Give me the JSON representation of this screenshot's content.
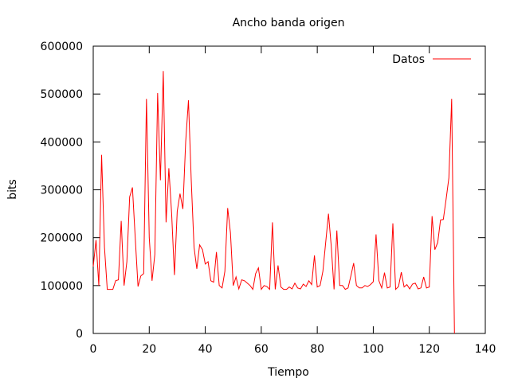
{
  "chart_data": {
    "type": "line",
    "title": "Ancho banda origen",
    "xlabel": "Tiempo",
    "ylabel": "bits",
    "xlim": [
      0,
      140
    ],
    "ylim": [
      0,
      600000
    ],
    "xticks": [
      0,
      20,
      40,
      60,
      80,
      100,
      120,
      140
    ],
    "yticks": [
      0,
      100000,
      200000,
      300000,
      400000,
      500000,
      600000
    ],
    "grid": false,
    "legend": "top-right",
    "color": "#ff0000",
    "series": [
      {
        "name": "Datos",
        "x": [
          0,
          1,
          2,
          3,
          4,
          5,
          6,
          7,
          8,
          9,
          10,
          11,
          12,
          13,
          14,
          15,
          16,
          17,
          18,
          19,
          20,
          21,
          22,
          23,
          24,
          25,
          26,
          27,
          28,
          29,
          30,
          31,
          32,
          33,
          34,
          35,
          36,
          37,
          38,
          39,
          40,
          41,
          42,
          43,
          44,
          45,
          46,
          47,
          48,
          49,
          50,
          51,
          52,
          53,
          54,
          55,
          56,
          57,
          58,
          59,
          60,
          61,
          62,
          63,
          64,
          65,
          66,
          67,
          68,
          69,
          70,
          71,
          72,
          73,
          74,
          75,
          76,
          77,
          78,
          79,
          80,
          81,
          82,
          83,
          84,
          85,
          86,
          87,
          88,
          89,
          90,
          91,
          92,
          93,
          94,
          95,
          96,
          97,
          98,
          99,
          100,
          101,
          102,
          103,
          104,
          105,
          106,
          107,
          108,
          109,
          110,
          111,
          112,
          113,
          114,
          115,
          116,
          117,
          118,
          119,
          120,
          121,
          122,
          123,
          124,
          125,
          126,
          127,
          128,
          129
        ],
        "y": [
          140000,
          195000,
          100000,
          373000,
          180000,
          92000,
          92000,
          92000,
          110000,
          112000,
          235000,
          100000,
          150000,
          285000,
          305000,
          200000,
          98000,
          120000,
          125000,
          490000,
          200000,
          110000,
          165000,
          502000,
          320000,
          548000,
          232000,
          345000,
          250000,
          122000,
          255000,
          292000,
          260000,
          400000,
          487000,
          320000,
          180000,
          135000,
          185000,
          175000,
          145000,
          150000,
          110000,
          107000,
          170000,
          100000,
          95000,
          130000,
          262000,
          210000,
          100000,
          118000,
          93000,
          112000,
          110000,
          105000,
          100000,
          92000,
          125000,
          137000,
          92000,
          100000,
          98000,
          92000,
          232000,
          92000,
          142000,
          97000,
          92000,
          92000,
          97000,
          93000,
          105000,
          95000,
          93000,
          103000,
          98000,
          110000,
          102000,
          163000,
          97000,
          100000,
          130000,
          190000,
          250000,
          182000,
          92000,
          215000,
          100000,
          100000,
          92000,
          95000,
          120000,
          147000,
          100000,
          95000,
          95000,
          100000,
          98000,
          102000,
          108000,
          207000,
          110000,
          95000,
          127000,
          95000,
          97000,
          230000,
          92000,
          98000,
          128000,
          97000,
          102000,
          93000,
          103000,
          105000,
          93000,
          95000,
          118000,
          95000,
          97000,
          245000,
          175000,
          190000,
          237000,
          238000,
          280000,
          325000,
          490000,
          0
        ]
      }
    ]
  }
}
